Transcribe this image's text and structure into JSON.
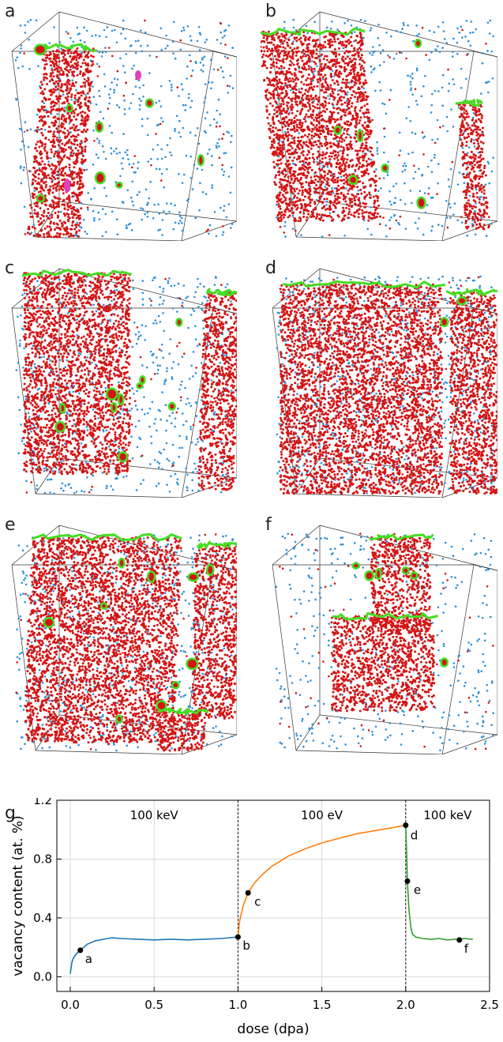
{
  "panels": [
    {
      "label": "a"
    },
    {
      "label": "b"
    },
    {
      "label": "c"
    },
    {
      "label": "d"
    },
    {
      "label": "e"
    },
    {
      "label": "f"
    }
  ],
  "colors": {
    "vacancy_red": "#d41414",
    "interstitial_blue": "#2f8fd6",
    "loop_green": "#44dd22",
    "magenta": "#e040c0",
    "edge": "#333333",
    "series_100keV_a": "#1f77b4",
    "series_100eV": "#ff7f0e",
    "series_100keV_b": "#2ca02c"
  },
  "chart_data": {
    "type": "line",
    "panel_label": "g",
    "xlabel": "dose (dpa)",
    "ylabel": "vacancy content (at. %)",
    "xlim": [
      -0.08,
      2.5
    ],
    "ylim": [
      -0.1,
      1.2
    ],
    "xticks": [
      "0.0",
      "0.5",
      "1.0",
      "1.5",
      "2.0",
      "2.5"
    ],
    "xtick_values": [
      0,
      0.5,
      1.0,
      1.5,
      2.0,
      2.5
    ],
    "yticks": [
      "0.0",
      "0.4",
      "0.8",
      "1.2"
    ],
    "ytick_values": [
      0,
      0.4,
      0.8,
      1.2
    ],
    "grid": true,
    "regions": [
      {
        "label": "100 keV",
        "x": 0.5
      },
      {
        "label": "100 eV",
        "x": 1.5
      },
      {
        "label": "100 keV",
        "x": 2.25
      }
    ],
    "dividers": [
      1.0,
      2.0
    ],
    "series": [
      {
        "color_key": "series_100keV_a",
        "x": [
          0.0,
          0.01,
          0.02,
          0.04,
          0.06,
          0.08,
          0.1,
          0.15,
          0.2,
          0.25,
          0.3,
          0.4,
          0.5,
          0.6,
          0.7,
          0.8,
          0.9,
          1.0
        ],
        "y": [
          0.02,
          0.1,
          0.13,
          0.16,
          0.18,
          0.2,
          0.22,
          0.245,
          0.255,
          0.265,
          0.26,
          0.255,
          0.25,
          0.255,
          0.25,
          0.255,
          0.26,
          0.27
        ]
      },
      {
        "color_key": "series_100eV",
        "x": [
          1.0,
          1.01,
          1.03,
          1.06,
          1.1,
          1.15,
          1.2,
          1.3,
          1.4,
          1.5,
          1.6,
          1.7,
          1.8,
          1.9,
          2.0
        ],
        "y": [
          0.27,
          0.38,
          0.48,
          0.57,
          0.64,
          0.7,
          0.75,
          0.82,
          0.87,
          0.91,
          0.94,
          0.97,
          0.99,
          1.01,
          1.03
        ]
      },
      {
        "color_key": "series_100keV_b",
        "x": [
          2.0,
          2.005,
          2.01,
          2.02,
          2.03,
          2.04,
          2.06,
          2.08,
          2.1,
          2.15,
          2.2,
          2.25,
          2.3,
          2.35,
          2.4
        ],
        "y": [
          1.03,
          0.85,
          0.65,
          0.45,
          0.34,
          0.29,
          0.27,
          0.265,
          0.26,
          0.255,
          0.26,
          0.25,
          0.255,
          0.26,
          0.255
        ]
      }
    ],
    "points": [
      {
        "label": "a",
        "x": 0.06,
        "y": 0.18
      },
      {
        "label": "b",
        "x": 1.0,
        "y": 0.27
      },
      {
        "label": "c",
        "x": 1.06,
        "y": 0.57
      },
      {
        "label": "d",
        "x": 2.0,
        "y": 1.03
      },
      {
        "label": "e",
        "x": 2.01,
        "y": 0.65
      },
      {
        "label": "f",
        "x": 2.32,
        "y": 0.25
      }
    ]
  }
}
